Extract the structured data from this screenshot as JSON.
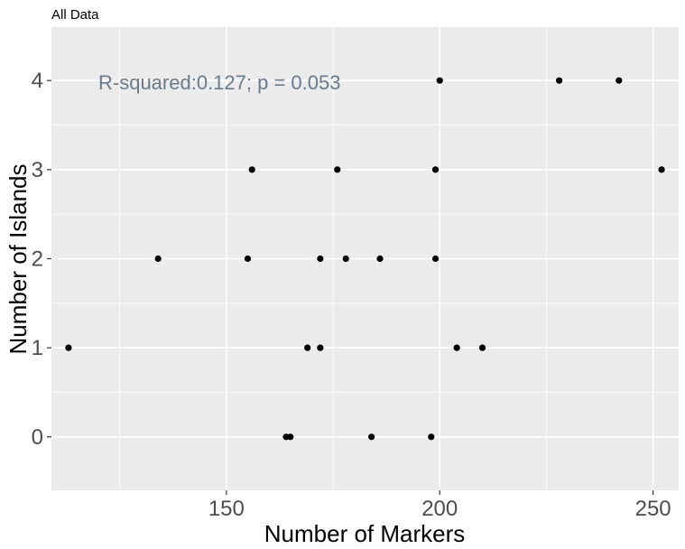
{
  "chart_data": {
    "type": "scatter",
    "title": "All Data",
    "xlabel": "Number of Markers",
    "ylabel": "Number of Islands",
    "xlim": [
      109,
      256
    ],
    "ylim": [
      -0.6,
      4.6
    ],
    "x_ticks": [
      150,
      200,
      250
    ],
    "x_minor_ticks": [
      125,
      175,
      225
    ],
    "y_ticks": [
      0,
      1,
      2,
      3,
      4
    ],
    "y_minor_ticks": [
      0.5,
      1.5,
      2.5,
      3.5
    ],
    "grid": true,
    "legend": "none",
    "colors": {
      "panel": "#ebebeb",
      "grid": "#ffffff",
      "point": "#000000",
      "annotation": "#6b7a8a",
      "tick_label": "#4d4d4d"
    },
    "annotation": {
      "text": "R-squared:0.127; p = 0.053",
      "x": 120,
      "y": 3.98
    },
    "points": [
      {
        "x": 113,
        "y": 1
      },
      {
        "x": 134,
        "y": 2
      },
      {
        "x": 155,
        "y": 2
      },
      {
        "x": 156,
        "y": 3
      },
      {
        "x": 164,
        "y": 0
      },
      {
        "x": 165,
        "y": 0
      },
      {
        "x": 169,
        "y": 1
      },
      {
        "x": 172,
        "y": 1
      },
      {
        "x": 172,
        "y": 2
      },
      {
        "x": 176,
        "y": 3
      },
      {
        "x": 178,
        "y": 2
      },
      {
        "x": 184,
        "y": 0
      },
      {
        "x": 186,
        "y": 2
      },
      {
        "x": 198,
        "y": 0
      },
      {
        "x": 199,
        "y": 2
      },
      {
        "x": 199,
        "y": 3
      },
      {
        "x": 200,
        "y": 4
      },
      {
        "x": 204,
        "y": 1
      },
      {
        "x": 210,
        "y": 1
      },
      {
        "x": 228,
        "y": 4
      },
      {
        "x": 242,
        "y": 4
      },
      {
        "x": 252,
        "y": 3
      }
    ]
  }
}
